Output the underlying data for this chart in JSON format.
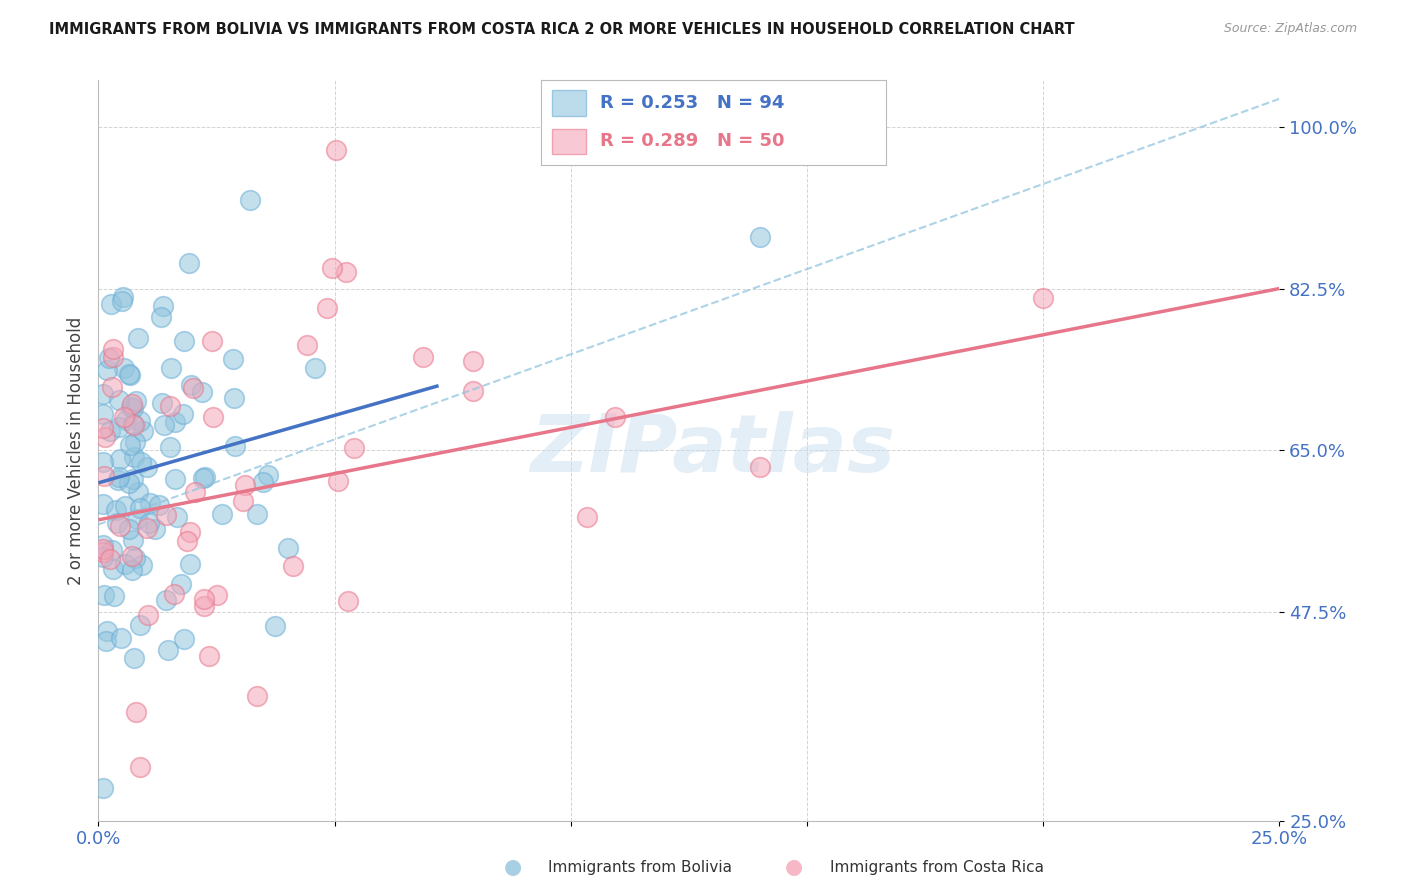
{
  "title": "IMMIGRANTS FROM BOLIVIA VS IMMIGRANTS FROM COSTA RICA 2 OR MORE VEHICLES IN HOUSEHOLD CORRELATION CHART",
  "source": "Source: ZipAtlas.com",
  "ylabel": "2 or more Vehicles in Household",
  "xlim": [
    0.0,
    0.25
  ],
  "ylim": [
    0.25,
    1.05
  ],
  "yticks": [
    0.25,
    0.475,
    0.65,
    0.825,
    1.0
  ],
  "ytick_labels": [
    "25.0%",
    "47.5%",
    "65.0%",
    "82.5%",
    "100.0%"
  ],
  "xticks": [
    0.0,
    0.05,
    0.1,
    0.15,
    0.2,
    0.25
  ],
  "xtick_labels": [
    "0.0%",
    "",
    "",
    "",
    "",
    "25.0%"
  ],
  "bolivia_color": "#92c5de",
  "bolivia_edge_color": "#6baed6",
  "costarica_color": "#f4a6b8",
  "costarica_edge_color": "#e8768a",
  "bolivia_R": 0.253,
  "bolivia_N": 94,
  "costarica_R": 0.289,
  "costarica_N": 50,
  "tick_color": "#4472c4",
  "watermark": "ZIPatlas",
  "bolivia_line_color": "#4472c4",
  "costarica_line_color": "#e8768a",
  "dash_line_color": "#92c5de",
  "bolivia_line_x": [
    0.0,
    0.072
  ],
  "bolivia_line_y": [
    0.615,
    0.72
  ],
  "costarica_line_x": [
    0.0,
    0.25
  ],
  "costarica_line_y": [
    0.575,
    0.825
  ],
  "dash_line_x": [
    0.0,
    0.25
  ],
  "dash_line_y": [
    0.57,
    1.03
  ]
}
